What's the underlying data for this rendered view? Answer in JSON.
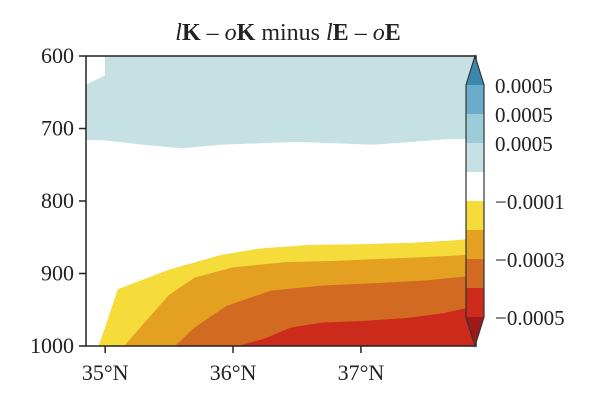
{
  "chart_data": {
    "type": "filled-contour",
    "title_parts": {
      "a": "l",
      "b": "K",
      "c": " – ",
      "d": "o",
      "e": "K",
      "f": " minus ",
      "g": "l",
      "h": "E",
      "i": " – ",
      "j": "o",
      "k": "E"
    },
    "title": "lK – oK minus lE – oE",
    "xlabel": "",
    "ylabel": "",
    "x_domain": [
      34.85,
      37.9
    ],
    "y_domain": [
      600,
      1000
    ],
    "y_inverted": true,
    "xticks": [
      {
        "value": 35,
        "label": "35°N"
      },
      {
        "value": 36,
        "label": "36°N"
      },
      {
        "value": 37,
        "label": "37°N"
      }
    ],
    "yticks": [
      {
        "value": 600,
        "label": "600"
      },
      {
        "value": 700,
        "label": "700"
      },
      {
        "value": 800,
        "label": "800"
      },
      {
        "value": 900,
        "label": "900"
      },
      {
        "value": 1000,
        "label": "1000"
      }
    ],
    "colorbar": {
      "levels": [
        {
          "color": "#3d86ad",
          "label": ""
        },
        {
          "color": "#6aaccb",
          "label": "0.0005"
        },
        {
          "color": "#9ccbd9",
          "label": "0.0005"
        },
        {
          "color": "#c6e1e4",
          "label": "0.0005"
        },
        {
          "color": "#ffffff",
          "label": ""
        },
        {
          "color": "#f5dc3b",
          "label": "−0.0001"
        },
        {
          "color": "#e3a021",
          "label": ""
        },
        {
          "color": "#d36a22",
          "label": "−0.0003"
        },
        {
          "color": "#cc2a1b",
          "label": ""
        },
        {
          "color": "#9e1a1a",
          "label": "−0.0005"
        }
      ],
      "extend": "both"
    },
    "regions": [
      {
        "fill": "#c6e1e4",
        "points": [
          [
            34.85,
            600
          ],
          [
            34.85,
            640
          ],
          [
            35.0,
            627
          ],
          [
            35.0,
            600
          ],
          [
            37.9,
            600
          ],
          [
            37.9,
            714
          ],
          [
            37.7,
            714
          ],
          [
            37.4,
            718
          ],
          [
            37.1,
            722
          ],
          [
            36.8,
            720
          ],
          [
            36.5,
            718
          ],
          [
            36.2,
            720
          ],
          [
            35.9,
            722
          ],
          [
            35.6,
            727
          ],
          [
            35.3,
            722
          ],
          [
            35.0,
            716
          ],
          [
            34.85,
            715
          ]
        ]
      },
      {
        "fill": "#f5dc3b",
        "points": [
          [
            34.85,
            1000
          ],
          [
            34.95,
            1000
          ],
          [
            35.0,
            975
          ],
          [
            35.1,
            922
          ],
          [
            35.5,
            895
          ],
          [
            35.9,
            875
          ],
          [
            36.2,
            866
          ],
          [
            36.6,
            861
          ],
          [
            37.0,
            860
          ],
          [
            37.4,
            858
          ],
          [
            37.7,
            855
          ],
          [
            37.9,
            852
          ],
          [
            37.9,
            1000
          ]
        ]
      },
      {
        "fill": "#e3a021",
        "points": [
          [
            35.15,
            1000
          ],
          [
            35.35,
            960
          ],
          [
            35.5,
            930
          ],
          [
            35.7,
            906
          ],
          [
            36.0,
            892
          ],
          [
            36.4,
            885
          ],
          [
            36.8,
            883
          ],
          [
            37.2,
            880
          ],
          [
            37.6,
            877
          ],
          [
            37.9,
            874
          ],
          [
            37.9,
            1000
          ]
        ]
      },
      {
        "fill": "#d36a22",
        "points": [
          [
            35.55,
            1000
          ],
          [
            35.7,
            975
          ],
          [
            35.95,
            945
          ],
          [
            36.3,
            924
          ],
          [
            36.7,
            917
          ],
          [
            37.1,
            914
          ],
          [
            37.5,
            910
          ],
          [
            37.9,
            903
          ],
          [
            37.9,
            1000
          ]
        ]
      },
      {
        "fill": "#cc2a1b",
        "points": [
          [
            36.05,
            1000
          ],
          [
            36.25,
            990
          ],
          [
            36.45,
            975
          ],
          [
            36.7,
            968
          ],
          [
            37.0,
            966
          ],
          [
            37.35,
            962
          ],
          [
            37.65,
            955
          ],
          [
            37.9,
            945
          ],
          [
            37.9,
            1000
          ]
        ]
      }
    ]
  }
}
